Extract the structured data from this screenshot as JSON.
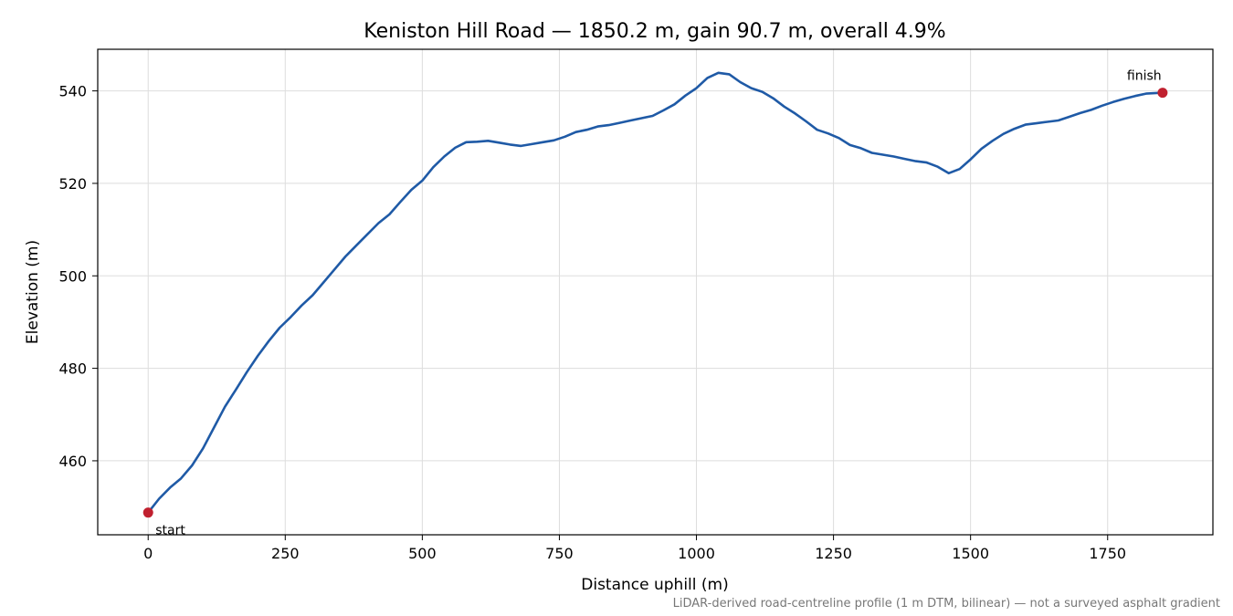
{
  "chart_data": {
    "type": "line",
    "title": "Keniston Hill Road — 1850.2 m, gain 90.7 m, overall 4.9%",
    "xlabel": "Distance uphill (m)",
    "ylabel": "Elevation (m)",
    "xlim": [
      -92,
      1942
    ],
    "ylim": [
      444,
      549
    ],
    "x_ticks": [
      0,
      250,
      500,
      750,
      1000,
      1250,
      1500,
      1750
    ],
    "y_ticks": [
      460,
      480,
      500,
      520,
      540
    ],
    "grid": true,
    "line_color": "#1f5aa6",
    "marker_color": "#c0202f",
    "series": [
      {
        "x": [
          0,
          20,
          40,
          60,
          80,
          100,
          120,
          140,
          160,
          180,
          200,
          220,
          240,
          260,
          280,
          300,
          320,
          340,
          360,
          380,
          400,
          420,
          440,
          460,
          480,
          500,
          520,
          540,
          560,
          580,
          600,
          620,
          640,
          660,
          680,
          700,
          720,
          740,
          760,
          780,
          800,
          820,
          840,
          860,
          880,
          900,
          920,
          940,
          960,
          980,
          1000,
          1020,
          1040,
          1060,
          1080,
          1100,
          1120,
          1140,
          1160,
          1180,
          1200,
          1220,
          1240,
          1260,
          1280,
          1300,
          1320,
          1340,
          1360,
          1380,
          1400,
          1420,
          1440,
          1460,
          1480,
          1500,
          1520,
          1540,
          1560,
          1580,
          1600,
          1620,
          1640,
          1660,
          1680,
          1700,
          1720,
          1740,
          1760,
          1780,
          1800,
          1820,
          1850.2
        ],
        "y": [
          448.8,
          451.8,
          454.2,
          456.2,
          459.0,
          462.7,
          467.2,
          471.7,
          475.4,
          479.2,
          482.7,
          485.9,
          488.8,
          491.1,
          493.6,
          495.8,
          498.6,
          501.4,
          504.2,
          506.6,
          509.0,
          511.4,
          513.3,
          516.0,
          518.6,
          520.6,
          523.5,
          525.8,
          527.7,
          528.9,
          529.0,
          529.2,
          528.8,
          528.4,
          528.1,
          528.5,
          528.9,
          529.3,
          530.1,
          531.1,
          531.6,
          532.3,
          532.6,
          533.1,
          533.6,
          534.1,
          534.6,
          535.8,
          537.1,
          539.0,
          540.6,
          542.8,
          543.9,
          543.6,
          541.9,
          540.6,
          539.8,
          538.4,
          536.6,
          535.1,
          533.4,
          531.6,
          530.8,
          529.8,
          528.3,
          527.6,
          526.6,
          526.2,
          525.8,
          525.3,
          524.8,
          524.5,
          523.6,
          522.2,
          523.1,
          525.2,
          527.5,
          529.2,
          530.7,
          531.8,
          532.7,
          533.0,
          533.3,
          533.6,
          534.4,
          535.2,
          535.9,
          536.8,
          537.6,
          538.3,
          538.9,
          539.4,
          539.6
        ]
      }
    ],
    "annotations": [
      {
        "text": "start",
        "x": 0,
        "y": 448.8
      },
      {
        "text": "finish",
        "x": 1850.2,
        "y": 539.6
      }
    ],
    "caption": "LiDAR-derived road-centreline profile (1 m DTM, bilinear) — not a surveyed asphalt gradient"
  }
}
